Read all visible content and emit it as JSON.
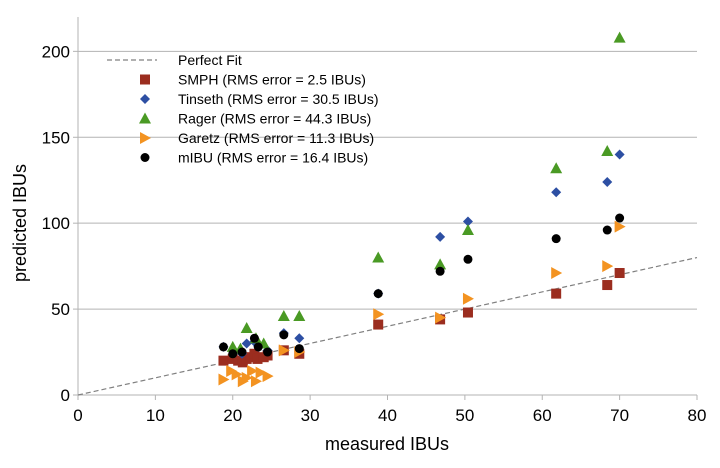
{
  "chart_data": {
    "type": "scatter",
    "xlabel": "measured IBUs",
    "ylabel": "predicted IBUs",
    "xlim": [
      0,
      80
    ],
    "ylim": [
      0,
      220
    ],
    "xticks": [
      0,
      10,
      20,
      30,
      40,
      50,
      60,
      70,
      80
    ],
    "yticks": [
      0,
      50,
      100,
      150,
      200
    ],
    "grid": "horizontal",
    "legend_position": "top-left",
    "reference_line": {
      "name": "Perfect Fit",
      "style": "dashed",
      "color": "#808080",
      "points": [
        [
          0,
          0
        ],
        [
          80,
          80
        ]
      ]
    },
    "series": [
      {
        "name": "SMPH (RMS error = 2.5 IBUs)",
        "marker": "square",
        "color": "#9b2d1f",
        "points": [
          [
            18.8,
            20
          ],
          [
            20,
            21
          ],
          [
            20.7,
            20
          ],
          [
            21.3,
            19
          ],
          [
            21.8,
            21
          ],
          [
            22.3,
            22
          ],
          [
            22.8,
            24
          ],
          [
            23.2,
            21
          ],
          [
            24,
            22
          ],
          [
            24.5,
            23
          ],
          [
            26.6,
            26
          ],
          [
            28.6,
            24
          ],
          [
            38.8,
            41
          ],
          [
            46.8,
            44
          ],
          [
            50.4,
            48
          ],
          [
            61.8,
            59
          ],
          [
            68.4,
            64
          ],
          [
            70,
            71
          ]
        ]
      },
      {
        "name": "Tinseth (RMS error = 30.5 IBUs)",
        "marker": "diamond",
        "color": "#2d4fa3",
        "points": [
          [
            18.8,
            28
          ],
          [
            20,
            26
          ],
          [
            21.2,
            24
          ],
          [
            21.8,
            30
          ],
          [
            22.8,
            31
          ],
          [
            23.3,
            28
          ],
          [
            24.5,
            26
          ],
          [
            26.6,
            36
          ],
          [
            28.6,
            33
          ],
          [
            38.8,
            59
          ],
          [
            46.8,
            92
          ],
          [
            50.4,
            101
          ],
          [
            61.8,
            118
          ],
          [
            68.4,
            124
          ],
          [
            70,
            140
          ]
        ]
      },
      {
        "name": "Rager (RMS error = 44.3 IBUs)",
        "marker": "triangle",
        "color": "#4a9a24",
        "points": [
          [
            20,
            28
          ],
          [
            21,
            27
          ],
          [
            21.8,
            39
          ],
          [
            23,
            33
          ],
          [
            24,
            30
          ],
          [
            26.6,
            46
          ],
          [
            28.6,
            46
          ],
          [
            38.8,
            80
          ],
          [
            46.8,
            76
          ],
          [
            50.4,
            96
          ],
          [
            61.8,
            132
          ],
          [
            68.4,
            142
          ],
          [
            70,
            208
          ]
        ]
      },
      {
        "name": "Garetz (RMS error = 11.3 IBUs)",
        "marker": "triangle-right",
        "color": "#f39321",
        "points": [
          [
            18.8,
            9
          ],
          [
            19.8,
            14
          ],
          [
            20.5,
            12
          ],
          [
            21.3,
            8
          ],
          [
            21.8,
            10
          ],
          [
            22.5,
            14
          ],
          [
            23,
            8
          ],
          [
            23.6,
            13
          ],
          [
            24.5,
            11
          ],
          [
            26.6,
            26
          ],
          [
            28.6,
            25
          ],
          [
            38.8,
            47
          ],
          [
            46.8,
            45
          ],
          [
            50.4,
            56
          ],
          [
            61.8,
            71
          ],
          [
            68.4,
            75
          ],
          [
            70,
            98
          ]
        ]
      },
      {
        "name": "mIBU (RMS error = 16.4 IBUs)",
        "marker": "circle",
        "color": "#000000",
        "points": [
          [
            18.8,
            28
          ],
          [
            20,
            24
          ],
          [
            21.2,
            25
          ],
          [
            22.8,
            33
          ],
          [
            23.3,
            28
          ],
          [
            24.5,
            25
          ],
          [
            26.6,
            35
          ],
          [
            28.6,
            27
          ],
          [
            38.8,
            59
          ],
          [
            46.8,
            72
          ],
          [
            50.4,
            79
          ],
          [
            61.8,
            91
          ],
          [
            68.4,
            96
          ],
          [
            70,
            103
          ]
        ]
      }
    ]
  }
}
